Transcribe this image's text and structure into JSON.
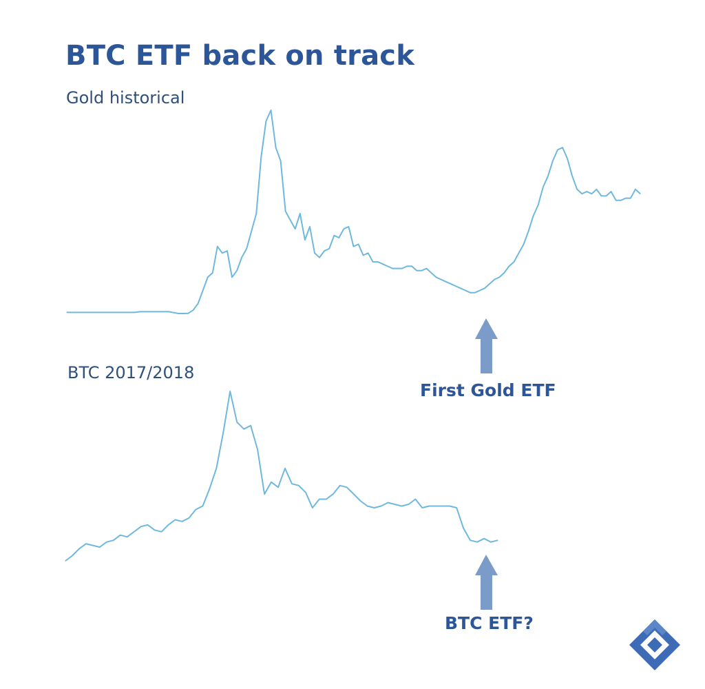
{
  "title": "BTC ETF back on track",
  "colors": {
    "title": "#2d5698",
    "line": "#6eb8de",
    "arrow": "#7b9cc9",
    "logo": "#3d6bb5"
  },
  "logo": {
    "icon": "diamond-g-logo-icon"
  },
  "chart_data": [
    {
      "type": "line",
      "title": "Gold historical",
      "xlabel": "",
      "ylabel": "",
      "grid": false,
      "legend": "none",
      "annotation": "First Gold ETF",
      "annotation_x_index": 99,
      "values": [
        1,
        1,
        1,
        1,
        1,
        1,
        1,
        1,
        1,
        1,
        1,
        1,
        1,
        1,
        1,
        1.3,
        1.3,
        1.3,
        1.3,
        1.3,
        1.3,
        1.3,
        0.9,
        0.5,
        0.5,
        0.6,
        2,
        5,
        11,
        17,
        19,
        31,
        28,
        29,
        17,
        20,
        26,
        30,
        38,
        46,
        72,
        88,
        93,
        76,
        70,
        47,
        43,
        39,
        46,
        34,
        40,
        28,
        26,
        29,
        30,
        36,
        35,
        39,
        40,
        31,
        32,
        27,
        28,
        24,
        24,
        23,
        22,
        21,
        21,
        21,
        22,
        22,
        20,
        20,
        21,
        19,
        17,
        16,
        15,
        14,
        13,
        12,
        11,
        10,
        10,
        11,
        12,
        14,
        16,
        17,
        19,
        22,
        24,
        28,
        32,
        38,
        45,
        50,
        58,
        63,
        70,
        75,
        76,
        71,
        63,
        57,
        55,
        56,
        55,
        57,
        54,
        54,
        56,
        52,
        52,
        53,
        53,
        57,
        55
      ],
      "gold_callout": "First Gold ETF"
    },
    {
      "type": "line",
      "title": "BTC 2017/2018",
      "xlabel": "",
      "ylabel": "",
      "grid": false,
      "legend": "none",
      "annotation": "BTC ETF?",
      "annotation_x_index": 63,
      "values": [
        1,
        4,
        8,
        11,
        10,
        9,
        12,
        13,
        16,
        15,
        18,
        21,
        22,
        19,
        18,
        22,
        25,
        24,
        26,
        31,
        33,
        43,
        55,
        76,
        100,
        82,
        78,
        80,
        66,
        40,
        47,
        44,
        55,
        46,
        45,
        41,
        32,
        37,
        37,
        40,
        45,
        44,
        40,
        36,
        33,
        32,
        33,
        35,
        34,
        33,
        34,
        37,
        32,
        33,
        33,
        33,
        33,
        32,
        20,
        13,
        12,
        14,
        12,
        13
      ]
    }
  ]
}
